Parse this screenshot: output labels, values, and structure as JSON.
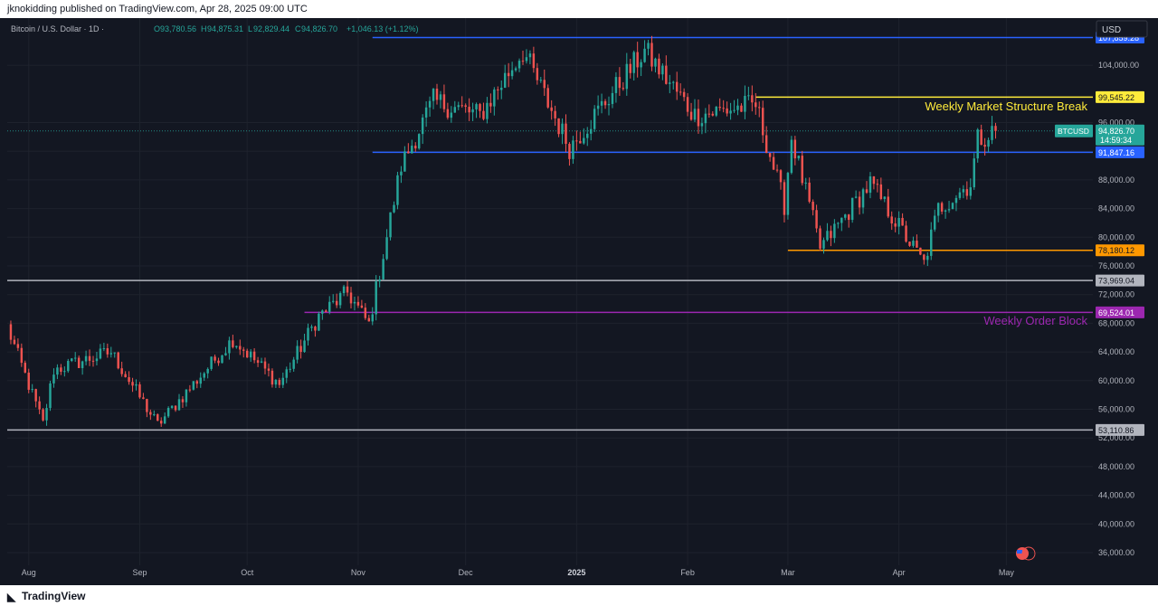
{
  "header": {
    "published": "jknokidding published on TradingView.com, Apr 28, 2025 09:00 UTC"
  },
  "legend": {
    "symbol": "Bitcoin / U.S. Dollar · 1D ·",
    "o_label": "O",
    "o_value": "93,780.56",
    "h_label": "H",
    "h_value": "94,875.31",
    "l_label": "L",
    "l_value": "92,829.44",
    "c_label": "C",
    "c_value": "94,826.70",
    "change": "+1,046.13 (+1.12%)"
  },
  "currency_button": "USD",
  "footer": {
    "brand": "TradingView"
  },
  "colors": {
    "background": "#131722",
    "up": "#26a69a",
    "down": "#ef5350",
    "blue_line": "#2962ff",
    "yellow_line": "#ffeb3b",
    "orange_line": "#ff9800",
    "gray_line": "#b2b5be",
    "purple_line": "#9c27b0",
    "axis_text": "#b2b5be"
  },
  "chart_data": {
    "type": "candlestick",
    "symbol": "BTCUSD",
    "interval": "1D",
    "price_axis": {
      "min": 34000,
      "max": 110000,
      "ticks": [
        "36,000.00",
        "40,000.00",
        "44,000.00",
        "48,000.00",
        "52,000.00",
        "56,000.00",
        "60,000.00",
        "64,000.00",
        "68,000.00",
        "72,000.00",
        "76,000.00",
        "80,000.00",
        "84,000.00",
        "88,000.00",
        "92,000.00",
        "96,000.00",
        "104,000.00"
      ]
    },
    "time_axis": {
      "range": [
        "2024-07-26",
        "2025-05-10"
      ],
      "labels": [
        {
          "date": "2024-08-01",
          "text": "Aug",
          "bold": false
        },
        {
          "date": "2024-09-01",
          "text": "Sep",
          "bold": false
        },
        {
          "date": "2024-10-01",
          "text": "Oct",
          "bold": false
        },
        {
          "date": "2024-11-01",
          "text": "Nov",
          "bold": false
        },
        {
          "date": "2024-12-01",
          "text": "Dec",
          "bold": false
        },
        {
          "date": "2025-01-01",
          "text": "2025",
          "bold": true
        },
        {
          "date": "2025-02-01",
          "text": "Feb",
          "bold": false
        },
        {
          "date": "2025-03-01",
          "text": "Mar",
          "bold": false
        },
        {
          "date": "2025-04-01",
          "text": "Apr",
          "bold": false
        },
        {
          "date": "2025-05-01",
          "text": "May",
          "bold": false
        }
      ]
    },
    "key_points": [
      {
        "date": "2024-07-26",
        "price": 67500
      },
      {
        "date": "2024-08-05",
        "price": 54000
      },
      {
        "date": "2024-08-08",
        "price": 61500
      },
      {
        "date": "2024-08-24",
        "price": 64000
      },
      {
        "date": "2024-09-06",
        "price": 53800
      },
      {
        "date": "2024-09-27",
        "price": 65800
      },
      {
        "date": "2024-10-10",
        "price": 59500
      },
      {
        "date": "2024-10-21",
        "price": 69000
      },
      {
        "date": "2024-10-29",
        "price": 72300
      },
      {
        "date": "2024-11-04",
        "price": 67800
      },
      {
        "date": "2024-11-13",
        "price": 90000
      },
      {
        "date": "2024-11-22",
        "price": 99000
      },
      {
        "date": "2024-12-05",
        "price": 97000
      },
      {
        "date": "2024-12-17",
        "price": 106000
      },
      {
        "date": "2024-12-30",
        "price": 92500
      },
      {
        "date": "2025-01-20",
        "price": 106000
      },
      {
        "date": "2025-02-03",
        "price": 97000
      },
      {
        "date": "2025-02-20",
        "price": 98500
      },
      {
        "date": "2025-02-28",
        "price": 84500
      },
      {
        "date": "2025-03-02",
        "price": 94000
      },
      {
        "date": "2025-03-10",
        "price": 78500
      },
      {
        "date": "2025-03-24",
        "price": 87500
      },
      {
        "date": "2025-04-08",
        "price": 76300
      },
      {
        "date": "2025-04-12",
        "price": 84000
      },
      {
        "date": "2025-04-21",
        "price": 87500
      },
      {
        "date": "2025-04-23",
        "price": 93700
      },
      {
        "date": "2025-04-28",
        "price": 94826.7
      }
    ],
    "horizontal_levels": [
      {
        "name": "top-resistance",
        "price": 107859.28,
        "label": "107,859.28",
        "color": "#2962ff",
        "from": "2024-11-05",
        "text_color": "#ffffff"
      },
      {
        "name": "weekly-msb",
        "price": 99545.22,
        "label": "99,545.22",
        "color": "#ffeb3b",
        "from": "2025-02-20",
        "text_color": "#131722"
      },
      {
        "name": "range-low",
        "price": 91847.16,
        "label": "91,847.16",
        "color": "#2962ff",
        "from": "2024-11-05",
        "text_color": "#ffffff"
      },
      {
        "name": "march-low",
        "price": 78180.12,
        "label": "78,180.12",
        "color": "#ff9800",
        "from": "2025-03-01",
        "text_color": "#131722"
      },
      {
        "name": "support-73k",
        "price": 73969.04,
        "label": "73,969.04",
        "color": "#b2b5be",
        "from": "2024-07-26",
        "text_color": "#131722"
      },
      {
        "name": "weekly-ob",
        "price": 69524.01,
        "label": "69,524.01",
        "color": "#9c27b0",
        "from": "2024-10-17",
        "text_color": "#ffffff"
      },
      {
        "name": "support-53k",
        "price": 53110.86,
        "label": "53,110.86",
        "color": "#b2b5be",
        "from": "2024-07-26",
        "text_color": "#131722"
      }
    ],
    "annotations": [
      {
        "text": "Weekly Market Structure Break",
        "color": "#ffeb3b",
        "price": 97700
      },
      {
        "text": "Weekly Order Block",
        "color": "#9c27b0",
        "price": 67800
      }
    ],
    "last_price": {
      "symbol_tag": "BTCUSD",
      "price": 94826.7,
      "label": "94,826.70",
      "countdown": "14:59:34",
      "color": "#26a69a"
    }
  }
}
